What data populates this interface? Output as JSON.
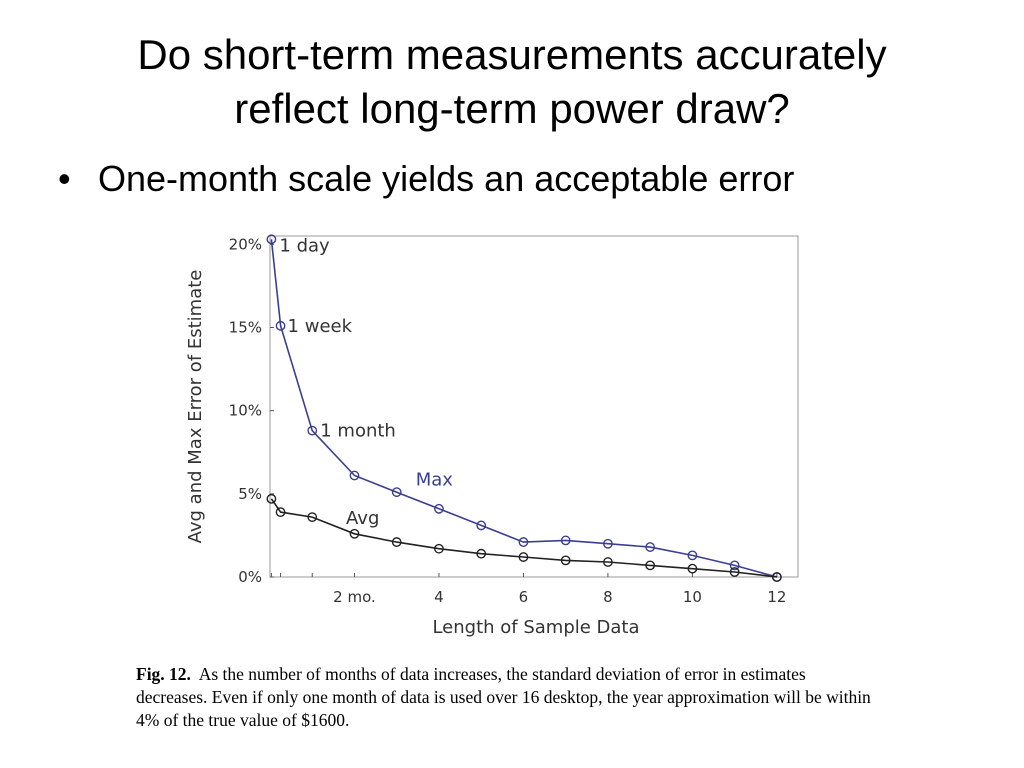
{
  "slide": {
    "title_line1": "Do short-term measurements accurately",
    "title_line2": "reflect long-term power draw?",
    "bullet_symbol": "•",
    "bullet": "One-month scale yields an acceptable error"
  },
  "caption": {
    "label": "Fig. 12.",
    "text": "As the number of months of data increases, the standard deviation of error in estimates decreases. Even if only one month of data is used over 16 desktop, the year approximation will be within 4% of the true value of $1600."
  },
  "chart_data": {
    "type": "line",
    "title": "",
    "xlabel": "Length of Sample Data",
    "ylabel": "Avg and Max Error of Estimate",
    "xlim": [
      0,
      12.5
    ],
    "ylim": [
      0,
      20.5
    ],
    "grid": false,
    "x_ticks": [
      {
        "value": 2,
        "label": "2 mo."
      },
      {
        "value": 4,
        "label": "4"
      },
      {
        "value": 6,
        "label": "6"
      },
      {
        "value": 8,
        "label": "8"
      },
      {
        "value": 10,
        "label": "10"
      },
      {
        "value": 12,
        "label": "12"
      }
    ],
    "x_minor_ticks": [
      0.033,
      0.25,
      1
    ],
    "y_ticks": [
      {
        "value": 0,
        "label": "0%"
      },
      {
        "value": 5,
        "label": "5%"
      },
      {
        "value": 10,
        "label": "10%"
      },
      {
        "value": 15,
        "label": "15%"
      },
      {
        "value": 20,
        "label": "20%"
      }
    ],
    "series": [
      {
        "name": "Max",
        "color": "#3b3f8f",
        "x": [
          0.033,
          0.25,
          1,
          2,
          3,
          4,
          5,
          6,
          7,
          8,
          9,
          10,
          11,
          12
        ],
        "y": [
          20.3,
          15.1,
          8.8,
          6.1,
          5.1,
          4.1,
          3.1,
          2.1,
          2.2,
          2.0,
          1.8,
          1.3,
          0.7,
          0.0
        ]
      },
      {
        "name": "Avg",
        "color": "#222222",
        "x": [
          0.033,
          0.25,
          1,
          2,
          3,
          4,
          5,
          6,
          7,
          8,
          9,
          10,
          11,
          12
        ],
        "y": [
          4.7,
          3.9,
          3.6,
          2.6,
          2.1,
          1.7,
          1.4,
          1.2,
          1.0,
          0.9,
          0.7,
          0.5,
          0.3,
          0.0
        ]
      }
    ],
    "annotations": [
      {
        "text": "1 day",
        "x": 0.033,
        "y": 20.3
      },
      {
        "text": "1 week",
        "x": 0.25,
        "y": 15.1
      },
      {
        "text": "1 month",
        "x": 1,
        "y": 8.8
      }
    ]
  }
}
